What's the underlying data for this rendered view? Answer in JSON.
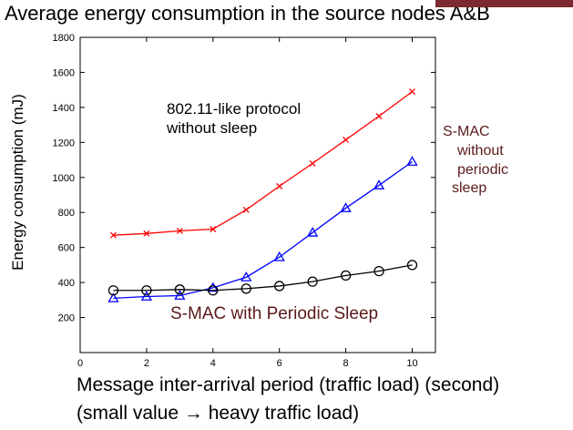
{
  "title": "Average energy consumption in the source nodes A&B",
  "chart_data": {
    "type": "line",
    "title": "Average energy consumption in the source nodes A&B",
    "xlabel": "Message inter-arrival period (traffic load) (second)",
    "xlabel_note": "(small value → heavy traffic load)",
    "ylabel": "Energy consumption (mJ)",
    "xlim": [
      0,
      10.7
    ],
    "ylim": [
      0,
      1800
    ],
    "x_ticks": [
      0,
      2,
      4,
      6,
      8,
      10
    ],
    "y_ticks": [
      200,
      400,
      600,
      800,
      1000,
      1200,
      1400,
      1600,
      1800
    ],
    "grid": false,
    "x": [
      1,
      2,
      3,
      4,
      5,
      6,
      7,
      8,
      9,
      10
    ],
    "series": [
      {
        "name": "802.11-like protocol without sleep",
        "color": "#ff0000",
        "marker": "x",
        "values": [
          670,
          680,
          695,
          705,
          815,
          950,
          1080,
          1215,
          1350,
          1490
        ]
      },
      {
        "name": "S-MAC without periodic sleep",
        "color": "#0000ff",
        "marker": "triangle",
        "values": [
          310,
          320,
          325,
          370,
          430,
          545,
          685,
          825,
          955,
          1090
        ]
      },
      {
        "name": "S-MAC with Periodic Sleep",
        "color": "#000000",
        "marker": "circle",
        "values": [
          355,
          355,
          360,
          355,
          365,
          380,
          405,
          440,
          465,
          500
        ]
      }
    ],
    "annotations": {
      "protocol_80211": [
        "802.11-like protocol",
        "without sleep"
      ],
      "smac_no_sleep": [
        "S-MAC",
        "without",
        "periodic",
        "sleep"
      ],
      "smac_periodic": "S-MAC with Periodic Sleep"
    }
  }
}
